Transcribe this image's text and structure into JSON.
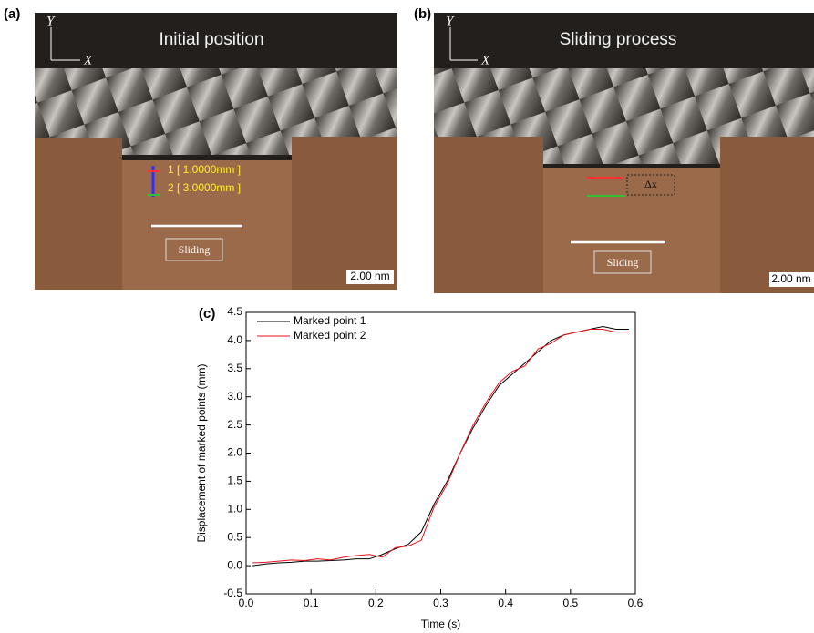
{
  "panels": {
    "a": {
      "label": "(a)",
      "title": "Initial position",
      "axis_y": "Y",
      "axis_x": "X",
      "marker_1": "1 [ 1.0000mm ]",
      "marker_2": "2 [ 3.0000mm ]",
      "arrow_label": "Sliding",
      "scale_bar": "2.00 nm"
    },
    "b": {
      "label": "(b)",
      "title": "Sliding process",
      "axis_y": "Y",
      "axis_x": "X",
      "delta": "Δx",
      "arrow_label": "Sliding",
      "scale_bar": "2.00 nm"
    }
  },
  "chart_data": {
    "type": "line",
    "label": "(c)",
    "x_label": "Time (s)",
    "y_label": "Displacement of marked points (mm)",
    "x": [
      0.01,
      0.03,
      0.05,
      0.07,
      0.09,
      0.11,
      0.13,
      0.15,
      0.17,
      0.19,
      0.21,
      0.23,
      0.25,
      0.27,
      0.29,
      0.31,
      0.33,
      0.35,
      0.37,
      0.39,
      0.41,
      0.43,
      0.45,
      0.47,
      0.49,
      0.51,
      0.53,
      0.55,
      0.57,
      0.59
    ],
    "series": [
      {
        "name": "Marked point 1",
        "color": "#000000",
        "values": [
          0.0,
          0.03,
          0.05,
          0.06,
          0.08,
          0.08,
          0.09,
          0.1,
          0.12,
          0.12,
          0.2,
          0.3,
          0.38,
          0.6,
          1.1,
          1.5,
          2.0,
          2.45,
          2.85,
          3.2,
          3.4,
          3.6,
          3.8,
          4.0,
          4.1,
          4.15,
          4.2,
          4.25,
          4.2,
          4.2
        ]
      },
      {
        "name": "Marked point 2",
        "color": "#e8101a",
        "values": [
          0.05,
          0.06,
          0.08,
          0.1,
          0.09,
          0.12,
          0.1,
          0.15,
          0.18,
          0.2,
          0.15,
          0.32,
          0.35,
          0.45,
          1.05,
          1.45,
          2.0,
          2.5,
          2.9,
          3.25,
          3.45,
          3.55,
          3.85,
          3.95,
          4.1,
          4.15,
          4.2,
          4.2,
          4.15,
          4.15
        ]
      }
    ],
    "xlim": [
      0,
      0.6
    ],
    "xticks": [
      {
        "value": 0,
        "label": "0.0"
      },
      0.1,
      0.2,
      0.3,
      0.4,
      0.5,
      0.6
    ],
    "ylim": [
      -0.5,
      4.5
    ],
    "yticks": [
      -0.5,
      {
        "value": 0,
        "label": "0.0"
      },
      0.5,
      {
        "value": 1,
        "label": "1.0"
      },
      1.5,
      {
        "value": 2,
        "label": "2.0"
      },
      2.5,
      {
        "value": 3,
        "label": "3.0"
      },
      3.5,
      {
        "value": 4,
        "label": "4.0"
      },
      4.5
    ],
    "legend": "upper-left"
  }
}
